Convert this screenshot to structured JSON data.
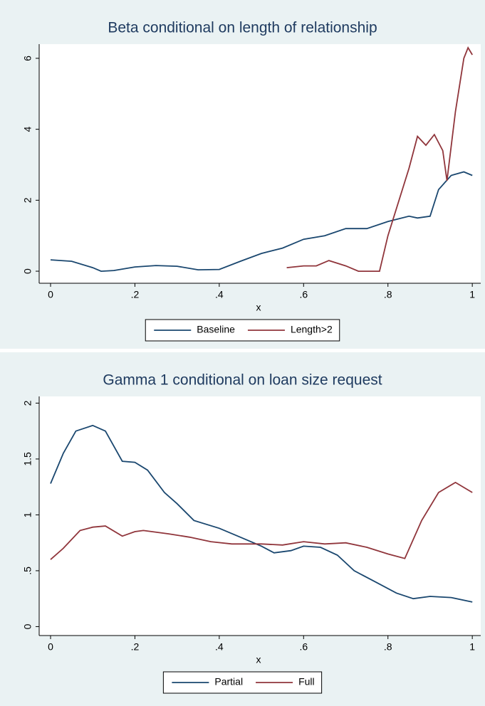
{
  "chart_data": [
    {
      "type": "line",
      "title": "Beta conditional on length of relationship",
      "xlabel": "x",
      "xlim": [
        -0.027,
        1.02
      ],
      "ylim": [
        -0.34,
        6.4
      ],
      "xticks": [
        0,
        {
          "value": 0.2,
          "label": ".2"
        },
        {
          "value": 0.4,
          "label": ".4"
        },
        {
          "value": 0.6,
          "label": ".6"
        },
        {
          "value": 0.8,
          "label": ".8"
        },
        1
      ],
      "yticks": [
        0,
        2,
        4,
        6
      ],
      "series": [
        {
          "name": "Baseline",
          "color": "#1a476f",
          "x": [
            0,
            0.05,
            0.1,
            0.12,
            0.15,
            0.2,
            0.25,
            0.3,
            0.35,
            0.4,
            0.45,
            0.5,
            0.55,
            0.6,
            0.65,
            0.7,
            0.75,
            0.8,
            0.85,
            0.87,
            0.9,
            0.92,
            0.95,
            0.98,
            1
          ],
          "values": [
            0.32,
            0.28,
            0.1,
            0.0,
            0.02,
            0.12,
            0.16,
            0.14,
            0.04,
            0.05,
            0.28,
            0.5,
            0.65,
            0.9,
            1.0,
            1.2,
            1.2,
            1.4,
            1.55,
            1.5,
            1.55,
            2.3,
            2.7,
            2.8,
            2.7
          ]
        },
        {
          "name": "Length>2",
          "color": "#90353b",
          "x": [
            0.56,
            0.6,
            0.63,
            0.66,
            0.7,
            0.73,
            0.78,
            0.8,
            0.85,
            0.87,
            0.89,
            0.91,
            0.93,
            0.94,
            0.96,
            0.98,
            0.99,
            1
          ],
          "values": [
            0.1,
            0.15,
            0.15,
            0.3,
            0.15,
            0.0,
            0.0,
            1.0,
            2.9,
            3.8,
            3.55,
            3.85,
            3.4,
            2.55,
            4.5,
            6.0,
            6.3,
            6.1
          ]
        }
      ]
    },
    {
      "type": "line",
      "title": "Gamma 1 conditional on loan size request",
      "xlabel": "x",
      "xlim": [
        -0.027,
        1.02
      ],
      "ylim": [
        -0.08,
        2.06
      ],
      "xticks": [
        0,
        {
          "value": 0.2,
          "label": ".2"
        },
        {
          "value": 0.4,
          "label": ".4"
        },
        {
          "value": 0.6,
          "label": ".6"
        },
        {
          "value": 0.8,
          "label": ".8"
        },
        1
      ],
      "yticks": [
        0,
        {
          "value": 0.5,
          "label": ".5"
        },
        1,
        1.5,
        2
      ],
      "series": [
        {
          "name": "Partial",
          "color": "#1a476f",
          "x": [
            0,
            0.03,
            0.06,
            0.1,
            0.13,
            0.17,
            0.2,
            0.23,
            0.27,
            0.3,
            0.34,
            0.4,
            0.45,
            0.5,
            0.53,
            0.57,
            0.6,
            0.64,
            0.68,
            0.72,
            0.77,
            0.82,
            0.86,
            0.9,
            0.95,
            1
          ],
          "values": [
            1.28,
            1.55,
            1.75,
            1.8,
            1.75,
            1.48,
            1.47,
            1.4,
            1.2,
            1.1,
            0.95,
            0.88,
            0.8,
            0.72,
            0.66,
            0.68,
            0.72,
            0.71,
            0.64,
            0.5,
            0.4,
            0.3,
            0.25,
            0.27,
            0.26,
            0.22
          ]
        },
        {
          "name": "Full",
          "color": "#90353b",
          "x": [
            0,
            0.03,
            0.07,
            0.1,
            0.13,
            0.17,
            0.2,
            0.22,
            0.28,
            0.33,
            0.38,
            0.43,
            0.5,
            0.55,
            0.6,
            0.65,
            0.7,
            0.75,
            0.8,
            0.84,
            0.88,
            0.92,
            0.96,
            1
          ],
          "values": [
            0.6,
            0.7,
            0.86,
            0.89,
            0.9,
            0.81,
            0.85,
            0.86,
            0.83,
            0.8,
            0.76,
            0.74,
            0.74,
            0.73,
            0.76,
            0.74,
            0.75,
            0.71,
            0.65,
            0.61,
            0.95,
            1.2,
            1.29,
            1.2
          ]
        }
      ]
    }
  ]
}
